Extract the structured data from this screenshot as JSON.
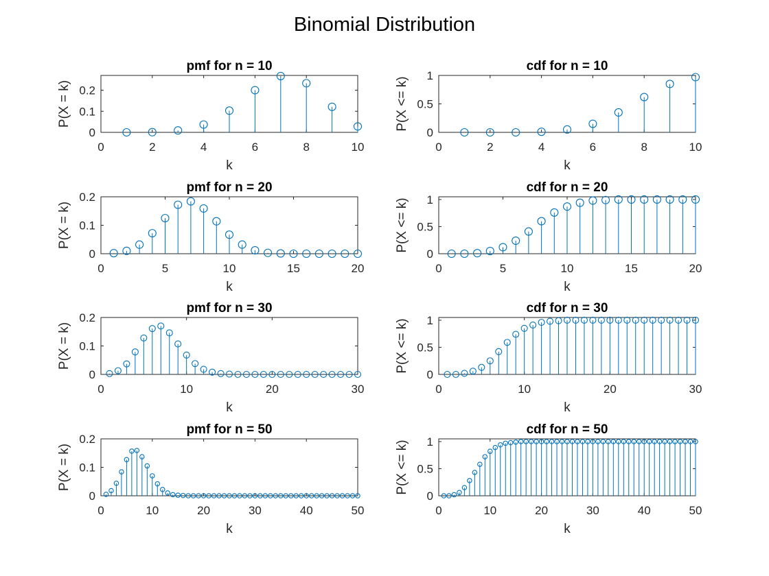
{
  "figure": {
    "title": "Binomial Distribution"
  },
  "colors": {
    "stem": "#0072BD",
    "axis": "#262626",
    "background": "#ffffff"
  },
  "chart_data": [
    {
      "type": "stem",
      "title": "pmf for n = 10",
      "xlabel": "k",
      "ylabel": "P(X = k)",
      "xlim": [
        0,
        10
      ],
      "ylim": [
        0,
        0.27
      ],
      "xticks": [
        0,
        2,
        4,
        6,
        8,
        10
      ],
      "xticklabels": [
        "0",
        "2",
        "4",
        "6",
        "8",
        "10"
      ],
      "yticks": [
        0,
        0.1,
        0.2
      ],
      "yticklabels": [
        "0",
        "0.1",
        "0.2"
      ],
      "x": [
        1,
        2,
        3,
        4,
        5,
        6,
        7,
        8,
        9,
        10
      ],
      "y": [
        0.0,
        0.001,
        0.009,
        0.037,
        0.103,
        0.2,
        0.267,
        0.233,
        0.121,
        0.028
      ]
    },
    {
      "type": "stem",
      "title": "cdf for n = 10",
      "xlabel": "k",
      "ylabel": "P(X <= k)",
      "xlim": [
        0,
        10
      ],
      "ylim": [
        0,
        1
      ],
      "xticks": [
        0,
        2,
        4,
        6,
        8,
        10
      ],
      "xticklabels": [
        "0",
        "2",
        "4",
        "6",
        "8",
        "10"
      ],
      "yticks": [
        0,
        0.5,
        1
      ],
      "yticklabels": [
        "0",
        "0.5",
        "1"
      ],
      "x": [
        1,
        2,
        3,
        4,
        5,
        6,
        7,
        8,
        9,
        10
      ],
      "y": [
        0.0,
        0.0,
        0.0,
        0.01,
        0.05,
        0.15,
        0.35,
        0.62,
        0.85,
        0.97
      ]
    },
    {
      "type": "stem",
      "title": "pmf for n = 20",
      "xlabel": "k",
      "ylabel": "P(X = k)",
      "xlim": [
        0,
        20
      ],
      "ylim": [
        0,
        0.2
      ],
      "xticks": [
        0,
        5,
        10,
        15,
        20
      ],
      "xticklabels": [
        "0",
        "5",
        "10",
        "15",
        "20"
      ],
      "yticks": [
        0,
        0.1,
        0.2
      ],
      "yticklabels": [
        "0",
        "0.1",
        "0.2"
      ],
      "x": [
        1,
        2,
        3,
        4,
        5,
        6,
        7,
        8,
        9,
        10,
        11,
        12,
        13,
        14,
        15,
        16,
        17,
        18,
        19,
        20
      ],
      "y": [
        0.002,
        0.01,
        0.032,
        0.072,
        0.125,
        0.172,
        0.184,
        0.159,
        0.114,
        0.067,
        0.032,
        0.012,
        0.003,
        0.001,
        0.0,
        0.0,
        0.0,
        0.0,
        0.0,
        0.0
      ]
    },
    {
      "type": "stem",
      "title": "cdf for n = 20",
      "xlabel": "k",
      "ylabel": "P(X <= k)",
      "xlim": [
        0,
        20
      ],
      "ylim": [
        0,
        1.05
      ],
      "xticks": [
        0,
        5,
        10,
        15,
        20
      ],
      "xticklabels": [
        "0",
        "5",
        "10",
        "15",
        "20"
      ],
      "yticks": [
        0,
        0.5,
        1
      ],
      "yticklabels": [
        "0",
        "0.5",
        "1"
      ],
      "x": [
        1,
        2,
        3,
        4,
        5,
        6,
        7,
        8,
        9,
        10,
        11,
        12,
        13,
        14,
        15,
        16,
        17,
        18,
        19,
        20
      ],
      "y": [
        0.0,
        0.0,
        0.01,
        0.05,
        0.12,
        0.24,
        0.41,
        0.6,
        0.76,
        0.87,
        0.94,
        0.98,
        0.99,
        1,
        1,
        1,
        1,
        1,
        1,
        1
      ]
    },
    {
      "type": "stem",
      "title": "pmf for n = 30",
      "xlabel": "k",
      "ylabel": "P(X = k)",
      "xlim": [
        0,
        30
      ],
      "ylim": [
        0,
        0.2
      ],
      "xticks": [
        0,
        10,
        20,
        30
      ],
      "xticklabels": [
        "0",
        "10",
        "20",
        "30"
      ],
      "yticks": [
        0,
        0.1,
        0.2
      ],
      "yticklabels": [
        "0",
        "0.1",
        "0.2"
      ],
      "x": [
        1,
        2,
        3,
        4,
        5,
        6,
        7,
        8,
        9,
        10,
        11,
        12,
        13,
        14,
        15,
        16,
        17,
        18,
        19,
        20,
        21,
        22,
        23,
        24,
        25,
        26,
        27,
        28,
        29,
        30
      ],
      "y": [
        0.003,
        0.013,
        0.037,
        0.079,
        0.128,
        0.161,
        0.17,
        0.146,
        0.107,
        0.068,
        0.038,
        0.018,
        0.008,
        0.003,
        0.001,
        0.0,
        0.0,
        0.0,
        0.0,
        0.0,
        0.0,
        0.0,
        0.0,
        0.0,
        0.0,
        0.0,
        0.0,
        0.0,
        0.0,
        0.0
      ]
    },
    {
      "type": "stem",
      "title": "cdf for n = 30",
      "xlabel": "k",
      "ylabel": "P(X <= k)",
      "xlim": [
        0,
        30
      ],
      "ylim": [
        0,
        1.05
      ],
      "xticks": [
        0,
        10,
        20,
        30
      ],
      "xticklabels": [
        "0",
        "10",
        "20",
        "30"
      ],
      "yticks": [
        0,
        0.5,
        1
      ],
      "yticklabels": [
        "0",
        "0.5",
        "1"
      ],
      "x": [
        1,
        2,
        3,
        4,
        5,
        6,
        7,
        8,
        9,
        10,
        11,
        12,
        13,
        14,
        15,
        16,
        17,
        18,
        19,
        20,
        21,
        22,
        23,
        24,
        25,
        26,
        27,
        28,
        29,
        30
      ],
      "y": [
        0.0,
        0.0,
        0.02,
        0.06,
        0.13,
        0.25,
        0.42,
        0.59,
        0.74,
        0.85,
        0.91,
        0.96,
        0.98,
        0.99,
        1,
        1,
        1,
        1,
        1,
        1,
        1,
        1,
        1,
        1,
        1,
        1,
        1,
        1,
        1,
        1
      ]
    },
    {
      "type": "stem",
      "title": "pmf for n = 50",
      "xlabel": "k",
      "ylabel": "P(X = k)",
      "xlim": [
        0,
        50
      ],
      "ylim": [
        0,
        0.2
      ],
      "xticks": [
        0,
        10,
        20,
        30,
        40,
        50
      ],
      "xticklabels": [
        "0",
        "10",
        "20",
        "30",
        "40",
        "50"
      ],
      "yticks": [
        0,
        0.1,
        0.2
      ],
      "yticklabels": [
        "0",
        "0.1",
        "0.2"
      ],
      "x": [
        1,
        2,
        3,
        4,
        5,
        6,
        7,
        8,
        9,
        10,
        11,
        12,
        13,
        14,
        15,
        16,
        17,
        18,
        19,
        20,
        21,
        22,
        23,
        24,
        25,
        26,
        27,
        28,
        29,
        30,
        31,
        32,
        33,
        34,
        35,
        36,
        37,
        38,
        39,
        40,
        41,
        42,
        43,
        44,
        45,
        46,
        47,
        48,
        49,
        50
      ],
      "y": [
        0.005,
        0.018,
        0.044,
        0.084,
        0.127,
        0.157,
        0.159,
        0.137,
        0.105,
        0.07,
        0.042,
        0.022,
        0.01,
        0.004,
        0.002,
        0.001,
        0.0,
        0.0,
        0.0,
        0.0,
        0.0,
        0.0,
        0.0,
        0.0,
        0.0,
        0.0,
        0.0,
        0.0,
        0.0,
        0.0,
        0.0,
        0.0,
        0.0,
        0.0,
        0.0,
        0.0,
        0.0,
        0.0,
        0.0,
        0.0,
        0.0,
        0.0,
        0.0,
        0.0,
        0.0,
        0.0,
        0.0,
        0.0,
        0.0,
        0.0
      ]
    },
    {
      "type": "stem",
      "title": "cdf for n = 50",
      "xlabel": "k",
      "ylabel": "P(X <= k)",
      "xlim": [
        0,
        50
      ],
      "ylim": [
        0,
        1.05
      ],
      "xticks": [
        0,
        10,
        20,
        30,
        40,
        50
      ],
      "xticklabels": [
        "0",
        "10",
        "20",
        "30",
        "40",
        "50"
      ],
      "yticks": [
        0,
        0.5,
        1
      ],
      "yticklabels": [
        "0",
        "0.5",
        "1"
      ],
      "x": [
        1,
        2,
        3,
        4,
        5,
        6,
        7,
        8,
        9,
        10,
        11,
        12,
        13,
        14,
        15,
        16,
        17,
        18,
        19,
        20,
        21,
        22,
        23,
        24,
        25,
        26,
        27,
        28,
        29,
        30,
        31,
        32,
        33,
        34,
        35,
        36,
        37,
        38,
        39,
        40,
        41,
        42,
        43,
        44,
        45,
        46,
        47,
        48,
        49,
        50
      ],
      "y": [
        0.0,
        0.0,
        0.02,
        0.06,
        0.15,
        0.28,
        0.43,
        0.58,
        0.72,
        0.82,
        0.89,
        0.94,
        0.97,
        0.98,
        0.99,
        1,
        1,
        1,
        1,
        1,
        1,
        1,
        1,
        1,
        1,
        1,
        1,
        1,
        1,
        1,
        1,
        1,
        1,
        1,
        1,
        1,
        1,
        1,
        1,
        1,
        1,
        1,
        1,
        1,
        1,
        1,
        1,
        1,
        1,
        1
      ]
    }
  ]
}
